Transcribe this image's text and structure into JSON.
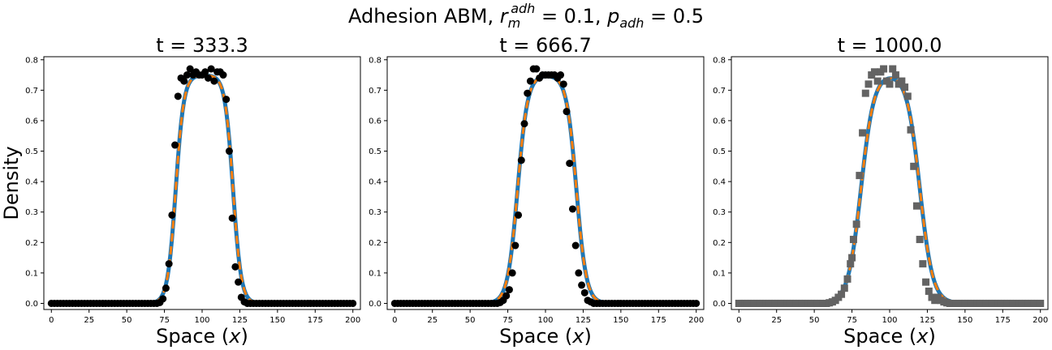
{
  "figure": {
    "suptitle_prefix": "Adhesion ABM, ",
    "suptitle_r": "r",
    "suptitle_r_sub": "m",
    "suptitle_r_sup": "adh",
    "suptitle_r_value": " = 0.1, ",
    "suptitle_p": "p",
    "suptitle_p_sub": "adh",
    "suptitle_p_value": " = 0.5"
  },
  "chart_data": [
    {
      "type": "line",
      "title": "t = 333.3",
      "xlabel": "Space (x)",
      "ylabel": "Density",
      "xlim": [
        -5,
        205
      ],
      "ylim": [
        -0.02,
        0.81
      ],
      "xticks": [
        0,
        25,
        50,
        75,
        100,
        125,
        150,
        175,
        200
      ],
      "yticks": [
        0.0,
        0.1,
        0.2,
        0.3,
        0.4,
        0.5,
        0.6,
        0.7,
        0.8
      ],
      "curve": {
        "center": 101.5,
        "half_width": 19.0,
        "plateau": 0.75,
        "edge_width": 2.7
      },
      "colors": {
        "solid": "#1f77b4",
        "dashed": "#ff7f0e",
        "markers": "#000000"
      },
      "marker_shape": "circle",
      "series": [
        {
          "style": "solid-line",
          "values_from": "curve"
        },
        {
          "style": "dashed-line",
          "values_from": "curve"
        },
        {
          "style": "markers",
          "x": [
            0,
            2,
            4,
            6,
            8,
            10,
            12,
            14,
            16,
            18,
            20,
            22,
            24,
            26,
            28,
            30,
            32,
            34,
            36,
            38,
            40,
            42,
            44,
            46,
            48,
            50,
            52,
            54,
            56,
            58,
            60,
            62,
            64,
            66,
            68,
            70,
            72,
            74,
            76,
            78,
            80,
            82,
            84,
            86,
            88,
            90,
            92,
            94,
            96,
            98,
            100,
            102,
            104,
            106,
            108,
            110,
            112,
            114,
            116,
            118,
            120,
            122,
            124,
            126,
            128,
            130,
            132,
            134,
            136,
            138,
            140,
            142,
            144,
            146,
            148,
            150,
            152,
            154,
            156,
            158,
            160,
            162,
            164,
            166,
            168,
            170,
            172,
            174,
            176,
            178,
            180,
            182,
            184,
            186,
            188,
            190,
            192,
            194,
            196,
            198,
            200
          ],
          "y": [
            0,
            0,
            0,
            0,
            0,
            0,
            0,
            0,
            0,
            0,
            0,
            0,
            0,
            0,
            0,
            0,
            0,
            0,
            0,
            0,
            0,
            0,
            0,
            0,
            0,
            0,
            0,
            0,
            0,
            0,
            0,
            0,
            0,
            0,
            0,
            0,
            0.003,
            0.015,
            0.05,
            0.13,
            0.29,
            0.52,
            0.68,
            0.74,
            0.73,
            0.75,
            0.77,
            0.75,
            0.76,
            0.75,
            0.75,
            0.76,
            0.74,
            0.77,
            0.73,
            0.76,
            0.76,
            0.75,
            0.67,
            0.5,
            0.28,
            0.12,
            0.07,
            0.02,
            0.005,
            0,
            0,
            0,
            0,
            0,
            0,
            0,
            0,
            0,
            0,
            0,
            0,
            0,
            0,
            0,
            0,
            0,
            0,
            0,
            0,
            0,
            0,
            0,
            0,
            0,
            0,
            0,
            0,
            0,
            0,
            0,
            0,
            0,
            0,
            0,
            0
          ]
        }
      ]
    },
    {
      "type": "line",
      "title": "t = 666.7",
      "xlabel": "Space (x)",
      "ylabel": "",
      "xlim": [
        -5,
        205
      ],
      "ylim": [
        -0.02,
        0.81
      ],
      "xticks": [
        0,
        25,
        50,
        75,
        100,
        125,
        150,
        175,
        200
      ],
      "yticks": [
        0.0,
        0.1,
        0.2,
        0.3,
        0.4,
        0.5,
        0.6,
        0.7,
        0.8
      ],
      "curve": {
        "center": 101.0,
        "half_width": 19.5,
        "plateau": 0.75,
        "edge_width": 3.3
      },
      "colors": {
        "solid": "#1f77b4",
        "dashed": "#ff7f0e",
        "markers": "#000000"
      },
      "marker_shape": "circle",
      "series": [
        {
          "style": "solid-line",
          "values_from": "curve"
        },
        {
          "style": "dashed-line",
          "values_from": "curve"
        },
        {
          "style": "markers",
          "x": [
            0,
            2,
            4,
            6,
            8,
            10,
            12,
            14,
            16,
            18,
            20,
            22,
            24,
            26,
            28,
            30,
            32,
            34,
            36,
            38,
            40,
            42,
            44,
            46,
            48,
            50,
            52,
            54,
            56,
            58,
            60,
            62,
            64,
            66,
            68,
            70,
            72,
            74,
            76,
            78,
            80,
            82,
            84,
            86,
            88,
            90,
            92,
            94,
            96,
            98,
            100,
            102,
            104,
            106,
            108,
            110,
            112,
            114,
            116,
            118,
            120,
            122,
            124,
            126,
            128,
            130,
            132,
            134,
            136,
            138,
            140,
            142,
            144,
            146,
            148,
            150,
            152,
            154,
            156,
            158,
            160,
            162,
            164,
            166,
            168,
            170,
            172,
            174,
            176,
            178,
            180,
            182,
            184,
            186,
            188,
            190,
            192,
            194,
            196,
            198,
            200
          ],
          "y": [
            0,
            0,
            0,
            0,
            0,
            0,
            0,
            0,
            0,
            0,
            0,
            0,
            0,
            0,
            0,
            0,
            0,
            0,
            0,
            0,
            0,
            0,
            0,
            0,
            0,
            0,
            0,
            0,
            0,
            0,
            0,
            0,
            0,
            0,
            0,
            0.003,
            0.01,
            0.025,
            0.045,
            0.1,
            0.19,
            0.29,
            0.47,
            0.59,
            0.69,
            0.73,
            0.77,
            0.77,
            0.74,
            0.75,
            0.75,
            0.75,
            0.75,
            0.75,
            0.74,
            0.75,
            0.72,
            0.63,
            0.46,
            0.31,
            0.19,
            0.1,
            0.06,
            0.035,
            0.01,
            0.005,
            0,
            0,
            0,
            0,
            0,
            0,
            0,
            0,
            0,
            0,
            0,
            0,
            0,
            0,
            0,
            0,
            0,
            0,
            0,
            0,
            0,
            0,
            0,
            0,
            0,
            0,
            0,
            0,
            0,
            0,
            0,
            0,
            0,
            0,
            0
          ]
        }
      ]
    },
    {
      "type": "line",
      "title": "t = 1000.0",
      "xlabel": "Space (x)",
      "ylabel": "",
      "xlim": [
        -5,
        205
      ],
      "ylim": [
        -0.02,
        0.81
      ],
      "xticks": [
        0,
        25,
        50,
        75,
        100,
        125,
        150,
        175,
        200
      ],
      "yticks": [
        0.0,
        0.1,
        0.2,
        0.3,
        0.4,
        0.5,
        0.6,
        0.7,
        0.8
      ],
      "curve": {
        "center": 100.5,
        "half_width": 19.5,
        "plateau": 0.755,
        "edge_width": 4.3
      },
      "colors": {
        "solid": "#1f77b4",
        "dashed": "#ff7f0e",
        "markers": "#636363"
      },
      "marker_shape": "square",
      "series": [
        {
          "style": "solid-line",
          "values_from": "curve"
        },
        {
          "style": "dashed-line",
          "values_from": "curve"
        },
        {
          "style": "markers",
          "x": [
            0,
            2,
            4,
            6,
            8,
            10,
            12,
            14,
            16,
            18,
            20,
            22,
            24,
            26,
            28,
            30,
            32,
            34,
            36,
            38,
            40,
            42,
            44,
            46,
            48,
            50,
            52,
            54,
            56,
            58,
            60,
            62,
            64,
            66,
            68,
            70,
            72,
            74,
            75,
            76,
            78,
            80,
            82,
            84,
            86,
            88,
            90,
            92,
            94,
            96,
            98,
            100,
            102,
            104,
            106,
            108,
            110,
            112,
            114,
            116,
            118,
            120,
            122,
            124,
            126,
            128,
            130,
            132,
            134,
            136,
            138,
            140,
            142,
            144,
            146,
            148,
            150,
            152,
            154,
            156,
            158,
            160,
            162,
            164,
            166,
            168,
            170,
            172,
            174,
            176,
            178,
            180,
            182,
            184,
            186,
            188,
            190,
            192,
            194,
            196,
            198,
            200
          ],
          "y": [
            0,
            0,
            0,
            0,
            0,
            0,
            0,
            0,
            0,
            0,
            0,
            0,
            0,
            0,
            0,
            0,
            0,
            0,
            0,
            0,
            0,
            0,
            0,
            0,
            0,
            0,
            0,
            0,
            0,
            0,
            0.002,
            0.005,
            0.01,
            0.02,
            0.03,
            0.05,
            0.08,
            0.13,
            0.15,
            0.21,
            0.26,
            0.42,
            0.56,
            0.69,
            0.72,
            0.75,
            0.76,
            0.73,
            0.76,
            0.77,
            0.73,
            0.72,
            0.77,
            0.75,
            0.72,
            0.73,
            0.71,
            0.68,
            0.57,
            0.45,
            0.32,
            0.21,
            0.13,
            0.07,
            0.04,
            0.02,
            0.01,
            0.02,
            0.01,
            0.005,
            0.002,
            0,
            0,
            0,
            0,
            0,
            0,
            0,
            0,
            0,
            0,
            0,
            0,
            0,
            0,
            0,
            0,
            0,
            0,
            0,
            0,
            0,
            0,
            0,
            0,
            0,
            0,
            0,
            0,
            0,
            0,
            0
          ]
        }
      ]
    }
  ]
}
